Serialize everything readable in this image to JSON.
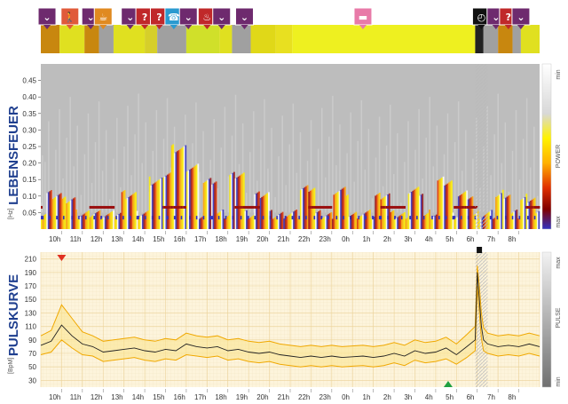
{
  "chart_data": [
    {
      "type": "timeline",
      "segments": [
        {
          "start": 0.0,
          "end": 0.9,
          "color": "#c8870f"
        },
        {
          "start": 0.9,
          "end": 2.1,
          "color": "#e0e020"
        },
        {
          "start": 2.1,
          "end": 2.8,
          "color": "#c8870f"
        },
        {
          "start": 2.8,
          "end": 3.5,
          "color": "#a0a0a0"
        },
        {
          "start": 3.5,
          "end": 5.0,
          "color": "#e0e020"
        },
        {
          "start": 5.0,
          "end": 5.6,
          "color": "#d6cf2a"
        },
        {
          "start": 5.6,
          "end": 7.0,
          "color": "#a0a0a0"
        },
        {
          "start": 7.0,
          "end": 8.6,
          "color": "#d0e02a"
        },
        {
          "start": 8.6,
          "end": 9.2,
          "color": "#e0e020"
        },
        {
          "start": 9.2,
          "end": 10.1,
          "color": "#a0a0a0"
        },
        {
          "start": 10.1,
          "end": 11.3,
          "color": "#e0d818"
        },
        {
          "start": 11.3,
          "end": 12.1,
          "color": "#e8e020"
        },
        {
          "start": 12.1,
          "end": 20.9,
          "color": "#eef020"
        },
        {
          "start": 20.9,
          "end": 21.3,
          "color": "#222222"
        },
        {
          "start": 21.3,
          "end": 22.0,
          "color": "#a0a0a0"
        },
        {
          "start": 22.0,
          "end": 22.7,
          "color": "#c8870f"
        },
        {
          "start": 22.7,
          "end": 23.1,
          "color": "#a0a0a0"
        },
        {
          "start": 23.1,
          "end": 24.0,
          "color": "#e0e020"
        }
      ],
      "icons": [
        {
          "pos": 0.3,
          "name": "chevron-down-icon",
          "glyph": "⌄",
          "bg": "#6e2a6e"
        },
        {
          "pos": 1.4,
          "name": "walking-person-icon",
          "glyph": "🚶",
          "bg": "#e05a3a"
        },
        {
          "pos": 2.4,
          "name": "chevron-down-icon",
          "glyph": "⌄",
          "bg": "#6e2a6e"
        },
        {
          "pos": 3.0,
          "name": "meal-icon",
          "glyph": "☕",
          "bg": "#e08a20"
        },
        {
          "pos": 4.3,
          "name": "chevron-down-icon",
          "glyph": "⌄",
          "bg": "#6e2a6e"
        },
        {
          "pos": 5.0,
          "name": "question-icon",
          "glyph": "?",
          "bg": "#c0282a"
        },
        {
          "pos": 5.7,
          "name": "question-icon",
          "glyph": "?",
          "bg": "#c0282a"
        },
        {
          "pos": 6.4,
          "name": "phone-icon",
          "glyph": "☎",
          "bg": "#2a9ad0"
        },
        {
          "pos": 7.1,
          "name": "chevron-down-icon",
          "glyph": "⌄",
          "bg": "#6e2a6e"
        },
        {
          "pos": 8.0,
          "name": "meal-icon",
          "glyph": "♨",
          "bg": "#c0282a"
        },
        {
          "pos": 8.7,
          "name": "chevron-down-icon",
          "glyph": "⌄",
          "bg": "#6e2a6e"
        },
        {
          "pos": 9.8,
          "name": "chevron-down-icon",
          "glyph": "⌄",
          "bg": "#6e2a6e"
        },
        {
          "pos": 15.5,
          "name": "bed-icon",
          "glyph": "▬",
          "bg": "#e87aa8"
        },
        {
          "pos": 21.2,
          "name": "stopwatch-icon",
          "glyph": "◴",
          "bg": "#111111"
        },
        {
          "pos": 21.9,
          "name": "chevron-down-icon",
          "glyph": "⌄",
          "bg": "#6e2a6e"
        },
        {
          "pos": 22.5,
          "name": "question-icon",
          "glyph": "?",
          "bg": "#c0282a"
        },
        {
          "pos": 23.1,
          "name": "chevron-down-icon",
          "glyph": "⌄",
          "bg": "#6e2a6e"
        }
      ]
    },
    {
      "type": "heatmap",
      "ylabel_side": "LEBENSFEUER",
      "yunit": "[Hz]",
      "yticks": [
        0.05,
        0.1,
        0.15,
        0.2,
        0.25,
        0.3,
        0.35,
        0.4,
        0.45
      ],
      "ylim": [
        0.0,
        0.5
      ],
      "colorbar": {
        "label": "POWER",
        "min_label": "min",
        "max_label": "max",
        "colors": [
          "#ffffff",
          "#e0e0e0",
          "#fff200",
          "#ffb000",
          "#e03000",
          "#800000",
          "#3030c0"
        ]
      },
      "activity_bursts": [
        {
          "t": 0.6,
          "h": 0.06
        },
        {
          "t": 1.3,
          "h": 0.04
        },
        {
          "t": 4.2,
          "h": 0.06
        },
        {
          "t": 5.5,
          "h": 0.1
        },
        {
          "t": 6.2,
          "h": 0.12
        },
        {
          "t": 6.6,
          "h": 0.2
        },
        {
          "t": 7.2,
          "h": 0.14
        },
        {
          "t": 8.1,
          "h": 0.1
        },
        {
          "t": 9.4,
          "h": 0.12
        },
        {
          "t": 10.6,
          "h": 0.06
        },
        {
          "t": 12.8,
          "h": 0.08
        },
        {
          "t": 14.4,
          "h": 0.07
        },
        {
          "t": 16.4,
          "h": 0.06
        },
        {
          "t": 18.0,
          "h": 0.07
        },
        {
          "t": 19.4,
          "h": 0.1
        },
        {
          "t": 20.4,
          "h": 0.06
        },
        {
          "t": 22.2,
          "h": 0.06
        },
        {
          "t": 23.4,
          "h": 0.05
        }
      ]
    },
    {
      "type": "line",
      "ylabel_side": "PULSKURVE",
      "yunit": "[BpM]",
      "yticks": [
        30,
        50,
        70,
        90,
        110,
        130,
        150,
        170,
        190,
        210
      ],
      "ylim": [
        20,
        220
      ],
      "colorbar": {
        "label": "PULSE",
        "min_label": "min",
        "max_label": "max"
      },
      "hours": [
        0,
        0.5,
        1,
        1.5,
        2,
        2.5,
        3,
        3.5,
        4,
        4.5,
        5,
        5.5,
        6,
        6.5,
        7,
        7.5,
        8,
        8.5,
        9,
        9.5,
        10,
        10.5,
        11,
        11.5,
        12,
        12.5,
        13,
        13.5,
        14,
        14.5,
        15,
        15.5,
        16,
        16.5,
        17,
        17.5,
        18,
        18.5,
        19,
        19.5,
        20,
        20.5,
        20.9,
        21.0,
        21.1,
        21.2,
        21.3,
        21.5,
        22,
        22.5,
        23,
        23.5,
        24
      ],
      "series": [
        {
          "name": "",
          "values": [
            82,
            88,
            112,
            96,
            84,
            80,
            72,
            74,
            76,
            78,
            74,
            72,
            76,
            74,
            84,
            80,
            78,
            80,
            74,
            76,
            72,
            70,
            72,
            68,
            66,
            64,
            66,
            64,
            66,
            64,
            65,
            66,
            64,
            66,
            70,
            66,
            74,
            70,
            72,
            78,
            68,
            80,
            90,
            190,
            150,
            110,
            90,
            84,
            80,
            82,
            80,
            84,
            80
          ]
        },
        {
          "name": "",
          "values": [
            96,
            104,
            142,
            122,
            102,
            96,
            88,
            90,
            92,
            94,
            90,
            88,
            92,
            90,
            100,
            96,
            94,
            96,
            90,
            92,
            88,
            86,
            88,
            84,
            82,
            80,
            82,
            80,
            82,
            80,
            81,
            82,
            80,
            82,
            86,
            82,
            90,
            86,
            88,
            94,
            84,
            98,
            110,
            200,
            170,
            130,
            108,
            100,
            96,
            98,
            96,
            100,
            96
          ]
        },
        {
          "name": "",
          "values": [
            68,
            72,
            90,
            78,
            68,
            66,
            58,
            60,
            62,
            64,
            60,
            58,
            62,
            60,
            68,
            66,
            64,
            66,
            60,
            62,
            58,
            56,
            58,
            54,
            52,
            50,
            52,
            50,
            52,
            50,
            51,
            52,
            50,
            52,
            56,
            52,
            60,
            56,
            58,
            62,
            54,
            64,
            74,
            170,
            130,
            92,
            74,
            70,
            66,
            68,
            66,
            70,
            66
          ]
        }
      ],
      "markers": [
        {
          "name": "peak-marker-icon",
          "t": 1.0,
          "shape": "down",
          "color": "#e03020"
        },
        {
          "name": "low-marker-icon",
          "t": 19.6,
          "shape": "up",
          "color": "#20a040"
        },
        {
          "name": "event-marker-icon",
          "t": 21.1,
          "shape": "square",
          "color": "#111111"
        }
      ]
    }
  ],
  "hour_labels": [
    "10h",
    "11h",
    "12h",
    "13h",
    "14h",
    "15h",
    "16h",
    "17h",
    "18h",
    "19h",
    "20h",
    "21h",
    "22h",
    "23h",
    "0h",
    "1h",
    "2h",
    "3h",
    "4h",
    "5h",
    "6h",
    "7h",
    "8h"
  ],
  "start_hour": 10
}
